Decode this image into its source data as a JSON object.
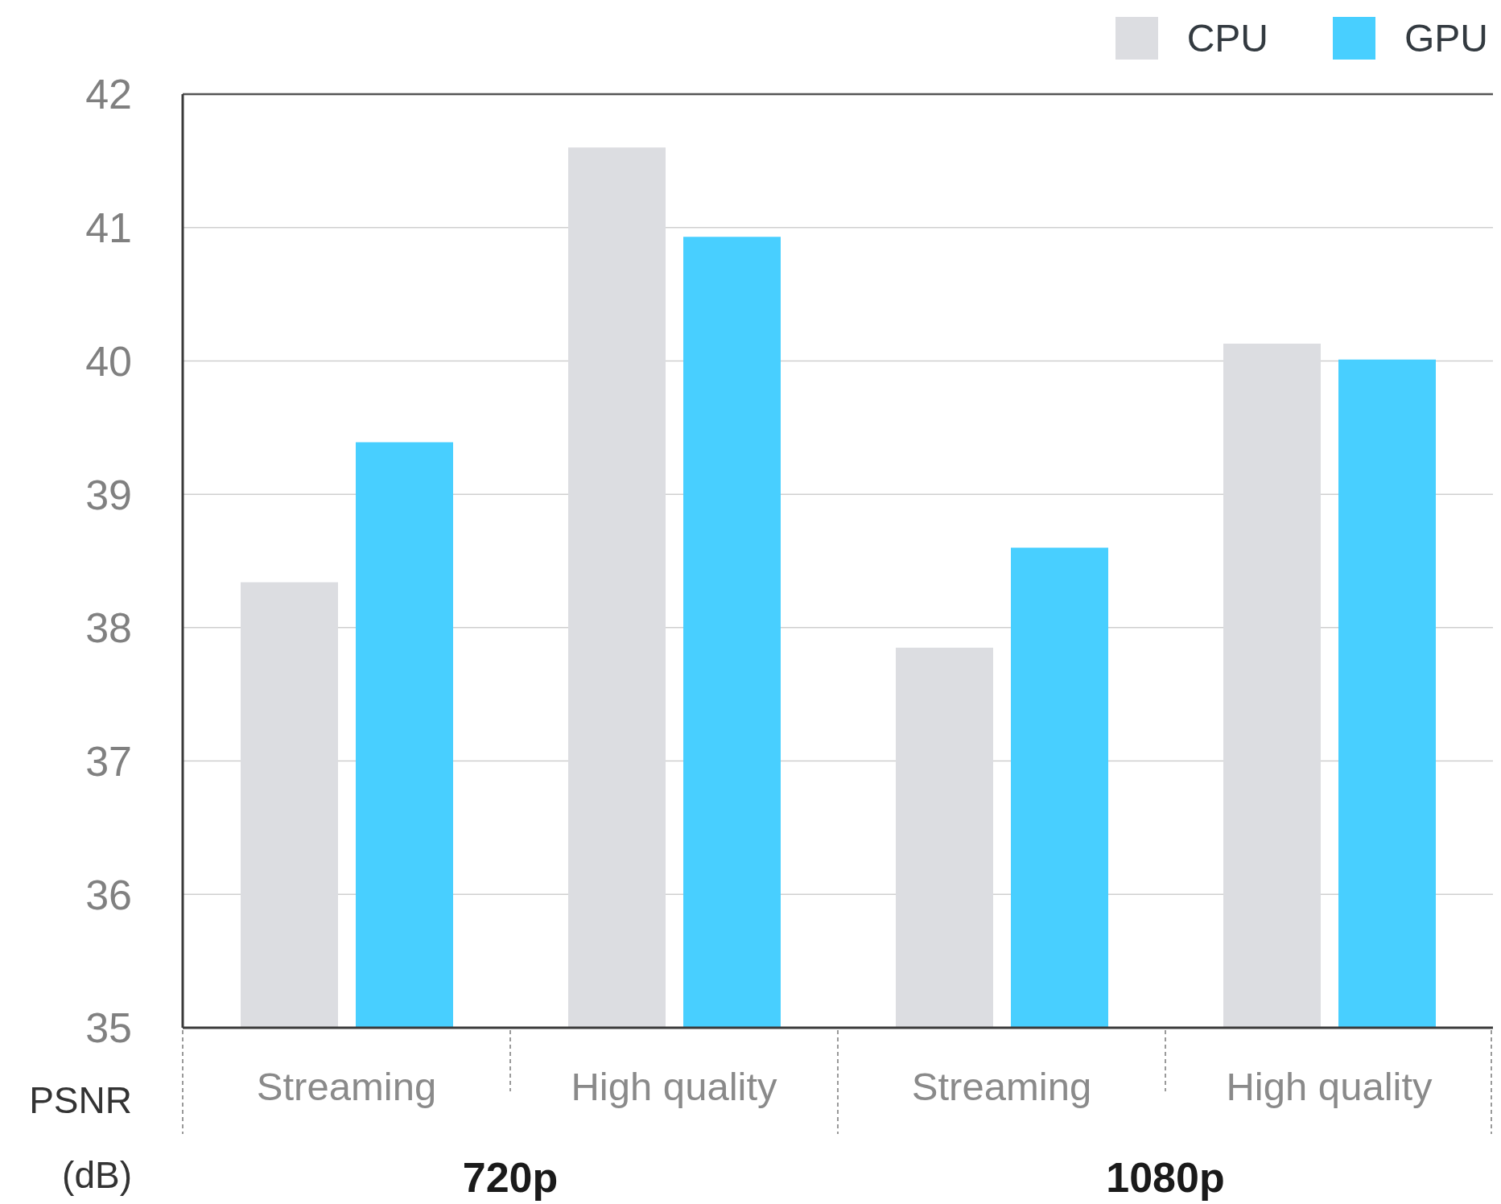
{
  "chart_data": {
    "type": "bar",
    "ylabel": "PSNR (dB)",
    "categories": [
      "Streaming",
      "High quality",
      "Streaming",
      "High quality"
    ],
    "annotations": [
      "720p",
      "1080p"
    ],
    "series": [
      {
        "name": "CPU",
        "color": "#dcdde1",
        "values": [
          38.34,
          41.6,
          37.85,
          40.13
        ]
      },
      {
        "name": "GPU",
        "color": "#48cfff",
        "values": [
          39.39,
          40.93,
          38.6,
          40.01
        ]
      }
    ],
    "ylim": [
      35,
      42
    ],
    "yticks": [
      35,
      36,
      37,
      38,
      39,
      40,
      41,
      42
    ],
    "grid": "y",
    "legend": "top right"
  }
}
